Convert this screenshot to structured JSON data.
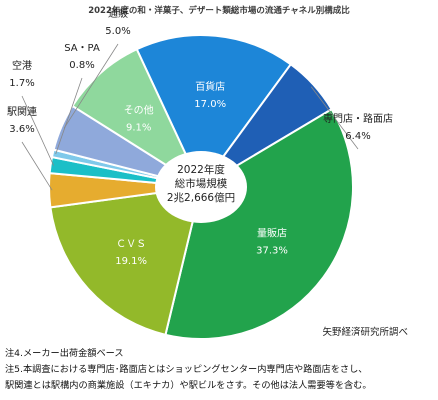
{
  "chart_data": {
    "type": "pie",
    "title": "2022年度の和・洋菓子、デザート類総市場の流通チャネル別構成比",
    "center_label": [
      "2022年度",
      "総市場規模",
      "2兆2,666億円"
    ],
    "slices": [
      {
        "label": "百貨店",
        "value": 17.0,
        "value_label": "17.0%",
        "color": "#1d86d8"
      },
      {
        "label": "専門店・路面店",
        "value": 6.4,
        "value_label": "6.4%",
        "color": "#1f5fb5"
      },
      {
        "label": "量販店",
        "value": 37.3,
        "value_label": "37.3%",
        "color": "#22a34c"
      },
      {
        "label": "ＣＶＳ",
        "value": 19.1,
        "value_label": "19.1%",
        "color": "#93b92a"
      },
      {
        "label": "駅関連",
        "value": 3.6,
        "value_label": "3.6%",
        "color": "#e6ac2f"
      },
      {
        "label": "空港",
        "value": 1.7,
        "value_label": "1.7%",
        "color": "#1bbfc7"
      },
      {
        "label": "SA・PA",
        "value": 0.8,
        "value_label": "0.8%",
        "color": "#7fc9ea"
      },
      {
        "label": "通販",
        "value": 5.0,
        "value_label": "5.0%",
        "color": "#8fa9db"
      },
      {
        "label": "その他",
        "value": 9.1,
        "value_label": "9.1%",
        "color": "#8fd89d"
      }
    ]
  },
  "source": "矢野経済研究所調べ",
  "notes": [
    "注4.メーカー出荷金額ベース",
    "注5.本調査における専門店･路面店とはショッピングセンター内専門店や路面店をさし、",
    "駅関連とは駅構内の商業施設（エキナカ）や駅ビルをさす。その他は法人需要等を含む。"
  ]
}
